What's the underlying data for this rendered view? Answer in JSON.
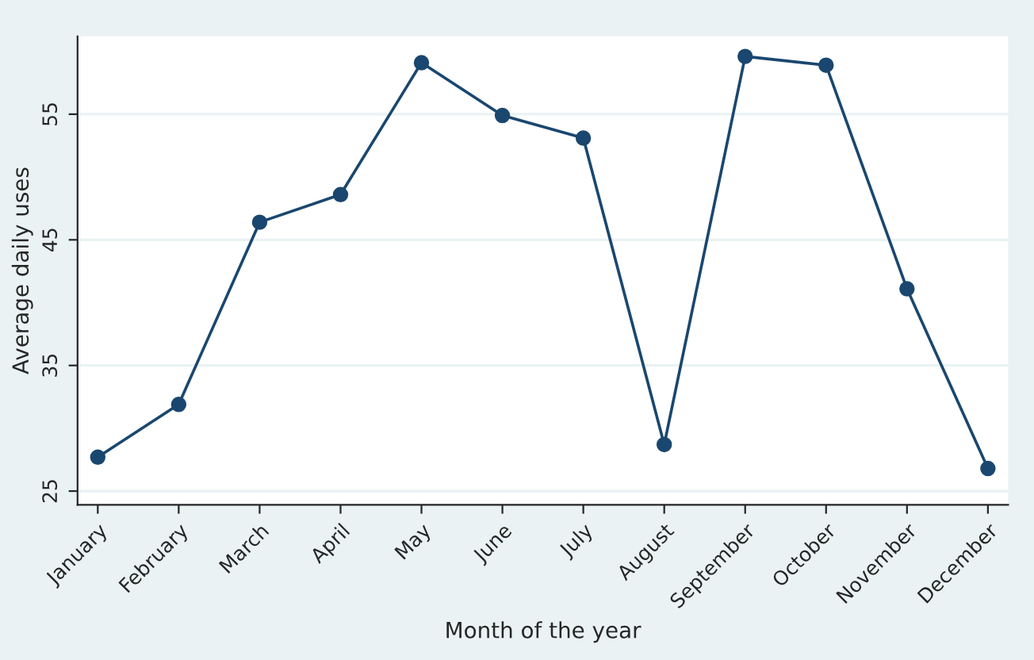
{
  "chart_data": {
    "type": "line",
    "xlabel": "Month of the year",
    "ylabel": "Average daily uses",
    "categories": [
      "January",
      "February",
      "March",
      "April",
      "May",
      "June",
      "July",
      "August",
      "September",
      "October",
      "November",
      "December"
    ],
    "series": [
      {
        "color": "#1a476f",
        "values": [
          27.7,
          31.9,
          46.4,
          48.6,
          59.1,
          54.9,
          53.1,
          28.7,
          59.6,
          58.9,
          41.1,
          26.8
        ]
      }
    ],
    "ylim": [
      23.9,
      61.2
    ],
    "yticks": [
      25,
      35,
      45,
      55
    ],
    "grid": "y",
    "marker": "circle",
    "line_style": "solid"
  }
}
